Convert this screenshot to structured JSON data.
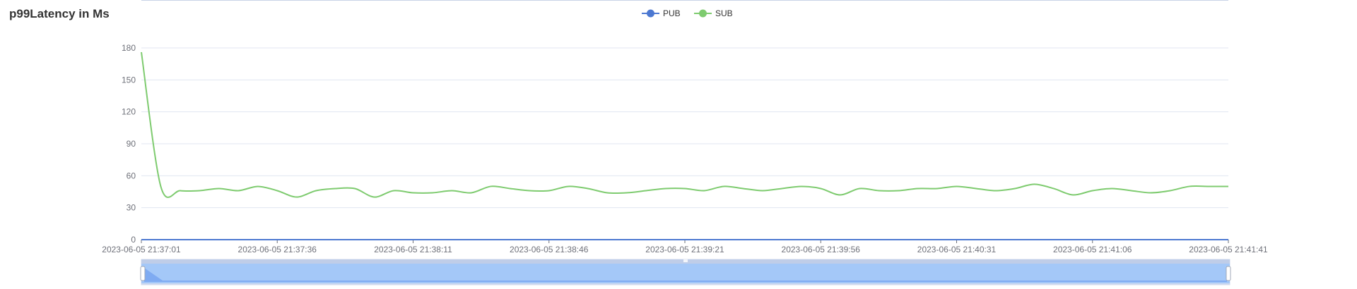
{
  "title": "p99Latency in Ms",
  "legend": [
    {
      "name": "PUB",
      "color": "#4c78d1",
      "icon": "circle-line"
    },
    {
      "name": "SUB",
      "color": "#7ecb6f",
      "icon": "circle-line"
    }
  ],
  "chart_data": {
    "type": "line",
    "title": "p99Latency in Ms",
    "xlabel": "",
    "ylabel": "",
    "ylim": [
      0,
      180
    ],
    "y_ticks": [
      0,
      30,
      60,
      90,
      120,
      150,
      180
    ],
    "x_ticks": [
      "2023-06-05 21:37:01",
      "2023-06-05 21:37:36",
      "2023-06-05 21:38:11",
      "2023-06-05 21:38:46",
      "2023-06-05 21:39:21",
      "2023-06-05 21:39:56",
      "2023-06-05 21:40:31",
      "2023-06-05 21:41:06",
      "2023-06-05 21:41:41"
    ],
    "xlim": [
      "2023-06-05 21:37:01",
      "2023-06-05 21:41:41"
    ],
    "grid": "horizontal",
    "legend_position": "top-center",
    "series": [
      {
        "name": "PUB",
        "color": "#4c78d1",
        "x_seconds": [
          0,
          280
        ],
        "values": [
          0,
          0
        ]
      },
      {
        "name": "SUB",
        "color": "#7ecb6f",
        "smooth": true,
        "x_seconds": [
          0,
          5,
          10,
          15,
          20,
          25,
          30,
          35,
          40,
          45,
          50,
          55,
          60,
          65,
          70,
          75,
          80,
          85,
          90,
          95,
          100,
          105,
          110,
          115,
          120,
          125,
          130,
          135,
          140,
          145,
          150,
          155,
          160,
          165,
          170,
          175,
          180,
          185,
          190,
          195,
          200,
          205,
          210,
          215,
          220,
          225,
          230,
          235,
          240,
          245,
          250,
          255,
          260,
          265,
          270,
          275,
          280
        ],
        "values": [
          176,
          50,
          46,
          46,
          48,
          46,
          50,
          46,
          40,
          46,
          48,
          48,
          40,
          46,
          44,
          44,
          46,
          44,
          50,
          48,
          46,
          46,
          50,
          48,
          44,
          44,
          46,
          48,
          48,
          46,
          50,
          48,
          46,
          48,
          50,
          48,
          42,
          48,
          46,
          46,
          48,
          48,
          50,
          48,
          46,
          48,
          52,
          48,
          42,
          46,
          48,
          46,
          44,
          46,
          50,
          50,
          50
        ]
      }
    ]
  },
  "data_zoom": {
    "start_percent": 0,
    "end_percent": 100
  }
}
